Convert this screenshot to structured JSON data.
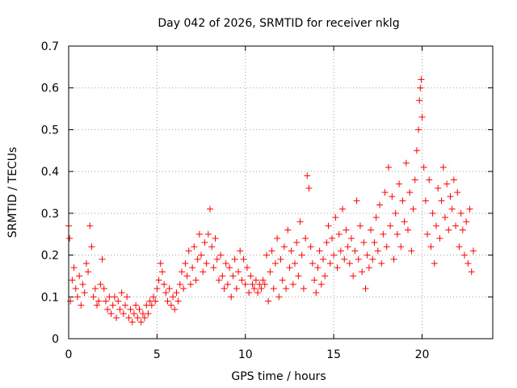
{
  "chart_data": {
    "type": "scatter",
    "title": "Day 042 of 2026, SRMTID for receiver nklg",
    "xlabel": "GPS time / hours",
    "ylabel": "SRMTID / TECUs",
    "xlim": [
      0,
      24
    ],
    "ylim": [
      0,
      0.7
    ],
    "xticks": [
      "0",
      "5",
      "10",
      "15",
      "20"
    ],
    "yticks": [
      "0",
      "0.1",
      "0.2",
      "0.3",
      "0.4",
      "0.5",
      "0.6",
      "0.7"
    ],
    "grid": true,
    "marker": "+",
    "series": [
      {
        "name": "SRMTID",
        "color": "#ff0000",
        "points": [
          [
            0.0,
            0.27
          ],
          [
            0.05,
            0.24
          ],
          [
            0.1,
            0.09
          ],
          [
            0.2,
            0.14
          ],
          [
            0.3,
            0.17
          ],
          [
            0.4,
            0.12
          ],
          [
            0.5,
            0.1
          ],
          [
            0.6,
            0.15
          ],
          [
            0.7,
            0.08
          ],
          [
            0.8,
            0.13
          ],
          [
            0.9,
            0.11
          ],
          [
            1.0,
            0.18
          ],
          [
            1.1,
            0.16
          ],
          [
            1.2,
            0.27
          ],
          [
            1.3,
            0.22
          ],
          [
            1.4,
            0.1
          ],
          [
            1.5,
            0.12
          ],
          [
            1.6,
            0.08
          ],
          [
            1.7,
            0.09
          ],
          [
            1.8,
            0.13
          ],
          [
            1.9,
            0.19
          ],
          [
            2.0,
            0.12
          ],
          [
            2.1,
            0.09
          ],
          [
            2.2,
            0.07
          ],
          [
            2.3,
            0.1
          ],
          [
            2.4,
            0.06
          ],
          [
            2.5,
            0.08
          ],
          [
            2.6,
            0.1
          ],
          [
            2.7,
            0.05
          ],
          [
            2.8,
            0.09
          ],
          [
            2.9,
            0.07
          ],
          [
            3.0,
            0.11
          ],
          [
            3.1,
            0.06
          ],
          [
            3.2,
            0.08
          ],
          [
            3.3,
            0.1
          ],
          [
            3.4,
            0.05
          ],
          [
            3.5,
            0.07
          ],
          [
            3.6,
            0.04
          ],
          [
            3.7,
            0.06
          ],
          [
            3.8,
            0.08
          ],
          [
            3.9,
            0.05
          ],
          [
            4.0,
            0.07
          ],
          [
            4.1,
            0.04
          ],
          [
            4.2,
            0.06
          ],
          [
            4.3,
            0.05
          ],
          [
            4.4,
            0.08
          ],
          [
            4.5,
            0.06
          ],
          [
            4.6,
            0.09
          ],
          [
            4.7,
            0.08
          ],
          [
            4.8,
            0.1
          ],
          [
            4.9,
            0.09
          ],
          [
            5.0,
            0.12
          ],
          [
            5.1,
            0.14
          ],
          [
            5.2,
            0.18
          ],
          [
            5.3,
            0.16
          ],
          [
            5.4,
            0.13
          ],
          [
            5.5,
            0.11
          ],
          [
            5.6,
            0.09
          ],
          [
            5.7,
            0.12
          ],
          [
            5.8,
            0.08
          ],
          [
            5.9,
            0.1
          ],
          [
            6.0,
            0.07
          ],
          [
            6.1,
            0.11
          ],
          [
            6.2,
            0.09
          ],
          [
            6.3,
            0.13
          ],
          [
            6.4,
            0.16
          ],
          [
            6.5,
            0.12
          ],
          [
            6.6,
            0.18
          ],
          [
            6.7,
            0.15
          ],
          [
            6.8,
            0.21
          ],
          [
            6.9,
            0.13
          ],
          [
            7.0,
            0.17
          ],
          [
            7.1,
            0.22
          ],
          [
            7.2,
            0.14
          ],
          [
            7.3,
            0.19
          ],
          [
            7.4,
            0.25
          ],
          [
            7.5,
            0.2
          ],
          [
            7.6,
            0.16
          ],
          [
            7.7,
            0.23
          ],
          [
            7.8,
            0.18
          ],
          [
            7.9,
            0.25
          ],
          [
            8.0,
            0.31
          ],
          [
            8.1,
            0.22
          ],
          [
            8.2,
            0.17
          ],
          [
            8.3,
            0.24
          ],
          [
            8.4,
            0.19
          ],
          [
            8.5,
            0.14
          ],
          [
            8.6,
            0.2
          ],
          [
            8.7,
            0.15
          ],
          [
            8.8,
            0.12
          ],
          [
            8.9,
            0.18
          ],
          [
            9.0,
            0.13
          ],
          [
            9.1,
            0.17
          ],
          [
            9.2,
            0.1
          ],
          [
            9.3,
            0.15
          ],
          [
            9.4,
            0.19
          ],
          [
            9.5,
            0.12
          ],
          [
            9.6,
            0.16
          ],
          [
            9.7,
            0.21
          ],
          [
            9.8,
            0.14
          ],
          [
            9.9,
            0.19
          ],
          [
            10.0,
            0.13
          ],
          [
            10.1,
            0.17
          ],
          [
            10.2,
            0.11
          ],
          [
            10.3,
            0.15
          ],
          [
            10.4,
            0.13
          ],
          [
            10.5,
            0.12
          ],
          [
            10.6,
            0.14
          ],
          [
            10.7,
            0.11
          ],
          [
            10.8,
            0.13
          ],
          [
            10.9,
            0.12
          ],
          [
            11.0,
            0.14
          ],
          [
            11.1,
            0.13
          ],
          [
            11.2,
            0.2
          ],
          [
            11.3,
            0.09
          ],
          [
            11.4,
            0.16
          ],
          [
            11.5,
            0.21
          ],
          [
            11.6,
            0.12
          ],
          [
            11.7,
            0.18
          ],
          [
            11.8,
            0.24
          ],
          [
            11.9,
            0.1
          ],
          [
            12.0,
            0.19
          ],
          [
            12.1,
            0.14
          ],
          [
            12.2,
            0.22
          ],
          [
            12.3,
            0.12
          ],
          [
            12.4,
            0.26
          ],
          [
            12.5,
            0.17
          ],
          [
            12.6,
            0.21
          ],
          [
            12.7,
            0.13
          ],
          [
            12.8,
            0.18
          ],
          [
            12.9,
            0.23
          ],
          [
            13.0,
            0.15
          ],
          [
            13.1,
            0.28
          ],
          [
            13.2,
            0.2
          ],
          [
            13.3,
            0.12
          ],
          [
            13.4,
            0.24
          ],
          [
            13.5,
            0.39
          ],
          [
            13.6,
            0.36
          ],
          [
            13.7,
            0.22
          ],
          [
            13.8,
            0.18
          ],
          [
            13.9,
            0.14
          ],
          [
            14.0,
            0.11
          ],
          [
            14.1,
            0.17
          ],
          [
            14.2,
            0.21
          ],
          [
            14.3,
            0.13
          ],
          [
            14.4,
            0.19
          ],
          [
            14.5,
            0.15
          ],
          [
            14.6,
            0.23
          ],
          [
            14.7,
            0.27
          ],
          [
            14.8,
            0.18
          ],
          [
            14.9,
            0.24
          ],
          [
            15.0,
            0.2
          ],
          [
            15.1,
            0.29
          ],
          [
            15.2,
            0.17
          ],
          [
            15.3,
            0.25
          ],
          [
            15.4,
            0.21
          ],
          [
            15.5,
            0.31
          ],
          [
            15.6,
            0.19
          ],
          [
            15.7,
            0.26
          ],
          [
            15.8,
            0.22
          ],
          [
            15.9,
            0.18
          ],
          [
            16.0,
            0.24
          ],
          [
            16.1,
            0.15
          ],
          [
            16.2,
            0.21
          ],
          [
            16.3,
            0.33
          ],
          [
            16.4,
            0.19
          ],
          [
            16.5,
            0.27
          ],
          [
            16.6,
            0.16
          ],
          [
            16.7,
            0.23
          ],
          [
            16.8,
            0.12
          ],
          [
            16.9,
            0.2
          ],
          [
            17.0,
            0.17
          ],
          [
            17.1,
            0.26
          ],
          [
            17.2,
            0.19
          ],
          [
            17.3,
            0.23
          ],
          [
            17.4,
            0.29
          ],
          [
            17.5,
            0.21
          ],
          [
            17.6,
            0.32
          ],
          [
            17.7,
            0.18
          ],
          [
            17.8,
            0.25
          ],
          [
            17.9,
            0.35
          ],
          [
            18.0,
            0.22
          ],
          [
            18.1,
            0.41
          ],
          [
            18.2,
            0.27
          ],
          [
            18.3,
            0.34
          ],
          [
            18.4,
            0.19
          ],
          [
            18.5,
            0.3
          ],
          [
            18.6,
            0.25
          ],
          [
            18.7,
            0.37
          ],
          [
            18.8,
            0.22
          ],
          [
            18.9,
            0.33
          ],
          [
            19.0,
            0.28
          ],
          [
            19.1,
            0.42
          ],
          [
            19.2,
            0.26
          ],
          [
            19.3,
            0.35
          ],
          [
            19.4,
            0.21
          ],
          [
            19.5,
            0.31
          ],
          [
            19.6,
            0.38
          ],
          [
            19.7,
            0.45
          ],
          [
            19.8,
            0.5
          ],
          [
            19.85,
            0.57
          ],
          [
            19.9,
            0.6
          ],
          [
            19.95,
            0.62
          ],
          [
            20.0,
            0.53
          ],
          [
            20.1,
            0.41
          ],
          [
            20.2,
            0.33
          ],
          [
            20.3,
            0.25
          ],
          [
            20.4,
            0.38
          ],
          [
            20.5,
            0.22
          ],
          [
            20.6,
            0.3
          ],
          [
            20.7,
            0.18
          ],
          [
            20.8,
            0.27
          ],
          [
            20.9,
            0.36
          ],
          [
            21.0,
            0.24
          ],
          [
            21.1,
            0.33
          ],
          [
            21.2,
            0.41
          ],
          [
            21.3,
            0.29
          ],
          [
            21.4,
            0.37
          ],
          [
            21.5,
            0.26
          ],
          [
            21.6,
            0.34
          ],
          [
            21.7,
            0.31
          ],
          [
            21.8,
            0.38
          ],
          [
            21.9,
            0.27
          ],
          [
            22.0,
            0.35
          ],
          [
            22.1,
            0.22
          ],
          [
            22.2,
            0.3
          ],
          [
            22.3,
            0.26
          ],
          [
            22.4,
            0.2
          ],
          [
            22.5,
            0.28
          ],
          [
            22.6,
            0.18
          ],
          [
            22.7,
            0.31
          ],
          [
            22.8,
            0.16
          ],
          [
            22.9,
            0.21
          ]
        ]
      }
    ]
  }
}
